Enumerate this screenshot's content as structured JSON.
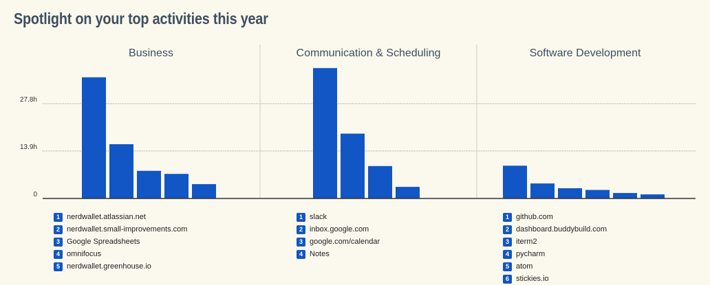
{
  "title": "Spotlight on your top activities this year",
  "colors": {
    "bar": "#1156c4",
    "badge": "#1156c4",
    "grid": "#888888",
    "divider": "#d4d2c8",
    "axis": "#333333"
  },
  "chart_data": {
    "type": "bar",
    "y_ticks": [
      {
        "value": 0,
        "label": "0"
      },
      {
        "value": 13.9,
        "label": "13.9h"
      },
      {
        "value": 27.8,
        "label": "27.8h"
      }
    ],
    "ylim": [
      0,
      40
    ],
    "grid": true,
    "panels": [
      {
        "title": "Business",
        "categories": [
          "nerdwallet.atlassian.net",
          "nerdwallet.small-improvements.com",
          "Google Spreadsheets",
          "omnifocus",
          "nerdwallet.greenhouse.io"
        ],
        "values": [
          35.5,
          15.9,
          8.1,
          7.2,
          4.2
        ]
      },
      {
        "title": "Communication & Scheduling",
        "categories": [
          "slack",
          "inbox.google.com",
          "google.com/calendar",
          "Notes"
        ],
        "values": [
          38.2,
          19.0,
          9.5,
          3.4
        ]
      },
      {
        "title": "Software Development",
        "categories": [
          "github.com",
          "dashboard.buddybuild.com",
          "iterm2",
          "pycharm",
          "atom",
          "stickies.io"
        ],
        "values": [
          9.6,
          4.4,
          3.0,
          2.5,
          1.6,
          1.2
        ]
      }
    ]
  }
}
